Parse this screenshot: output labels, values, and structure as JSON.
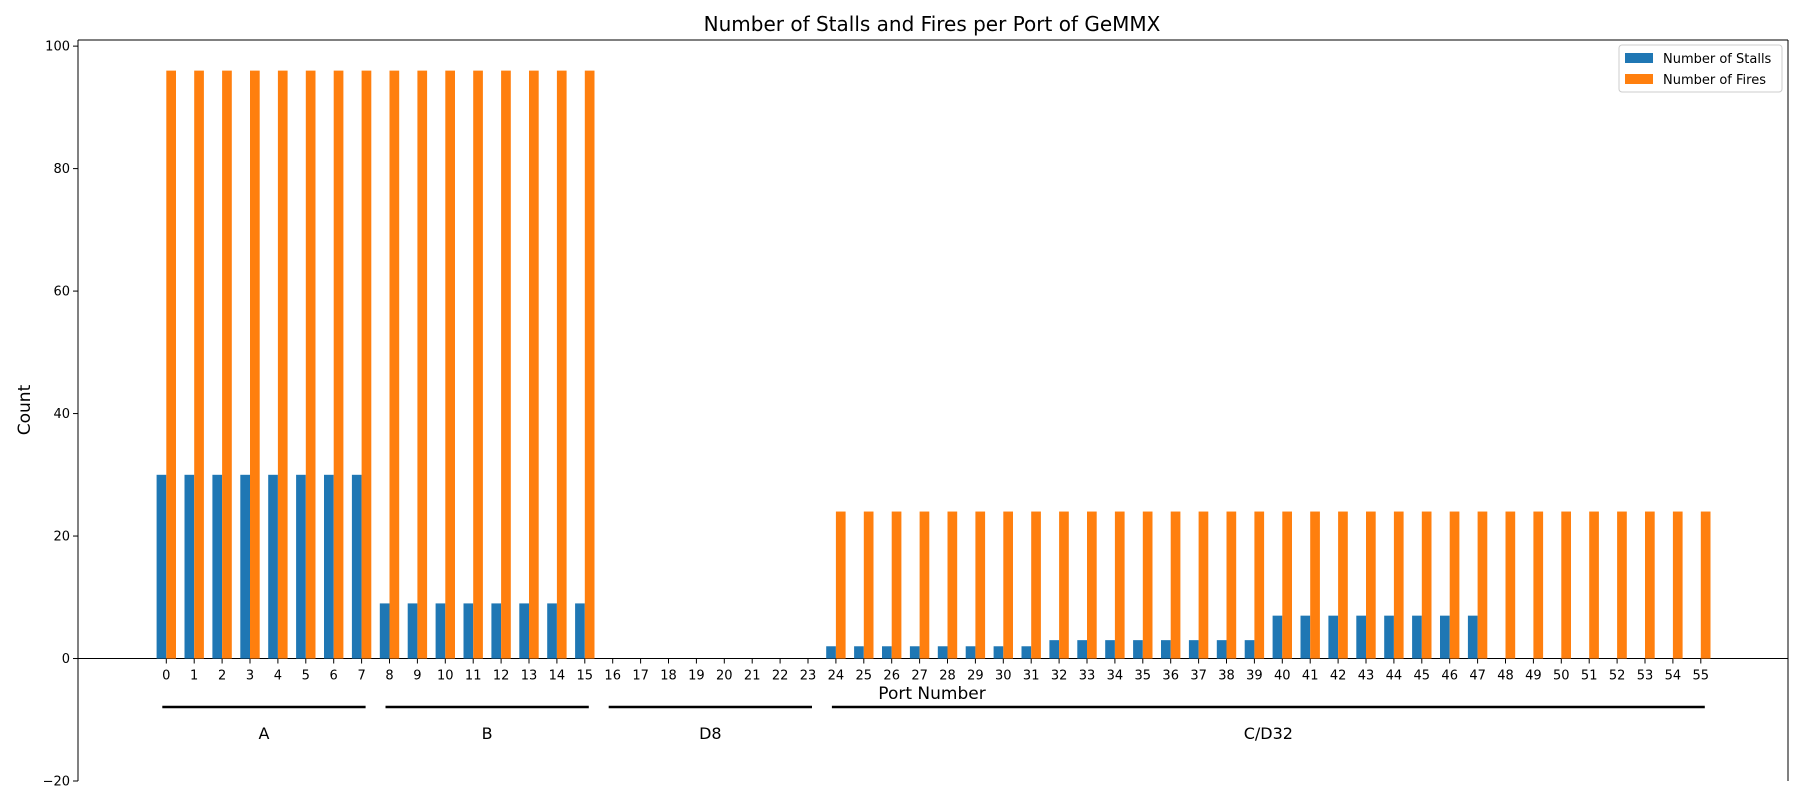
{
  "chart_data": {
    "type": "bar",
    "title": "Number of Stalls and Fires per Port of GeMMX",
    "xlabel": "Port Number",
    "ylabel": "Count",
    "ylim": [
      -20,
      101
    ],
    "yticks": [
      -20,
      0,
      20,
      40,
      60,
      80,
      100
    ],
    "grid": false,
    "legend_position": "top-right",
    "categories": [
      "0",
      "1",
      "2",
      "3",
      "4",
      "5",
      "6",
      "7",
      "8",
      "9",
      "10",
      "11",
      "12",
      "13",
      "14",
      "15",
      "16",
      "17",
      "18",
      "19",
      "20",
      "21",
      "22",
      "23",
      "24",
      "25",
      "26",
      "27",
      "28",
      "29",
      "30",
      "31",
      "32",
      "33",
      "34",
      "35",
      "36",
      "37",
      "38",
      "39",
      "40",
      "41",
      "42",
      "43",
      "44",
      "45",
      "46",
      "47",
      "48",
      "49",
      "50",
      "51",
      "52",
      "53",
      "54",
      "55"
    ],
    "series": [
      {
        "name": "Number of Stalls",
        "color": "#1f77b4",
        "values": [
          30,
          30,
          30,
          30,
          30,
          30,
          30,
          30,
          9,
          9,
          9,
          9,
          9,
          9,
          9,
          9,
          0,
          0,
          0,
          0,
          0,
          0,
          0,
          0,
          2,
          2,
          2,
          2,
          2,
          2,
          2,
          2,
          3,
          3,
          3,
          3,
          3,
          3,
          3,
          3,
          7,
          7,
          7,
          7,
          7,
          7,
          7,
          7,
          0,
          0,
          0,
          0,
          0,
          0,
          0,
          0
        ]
      },
      {
        "name": "Number of Fires",
        "color": "#ff7f0e",
        "values": [
          96,
          96,
          96,
          96,
          96,
          96,
          96,
          96,
          96,
          96,
          96,
          96,
          96,
          96,
          96,
          96,
          0,
          0,
          0,
          0,
          0,
          0,
          0,
          0,
          24,
          24,
          24,
          24,
          24,
          24,
          24,
          24,
          24,
          24,
          24,
          24,
          24,
          24,
          24,
          24,
          24,
          24,
          24,
          24,
          24,
          24,
          24,
          24,
          24,
          24,
          24,
          24,
          24,
          24,
          24,
          24
        ]
      }
    ],
    "groups": [
      {
        "label": "A",
        "from": 0,
        "to": 7
      },
      {
        "label": "B",
        "from": 8,
        "to": 15
      },
      {
        "label": "D8",
        "from": 16,
        "to": 23
      },
      {
        "label": "C/D32",
        "from": 24,
        "to": 55
      }
    ]
  }
}
